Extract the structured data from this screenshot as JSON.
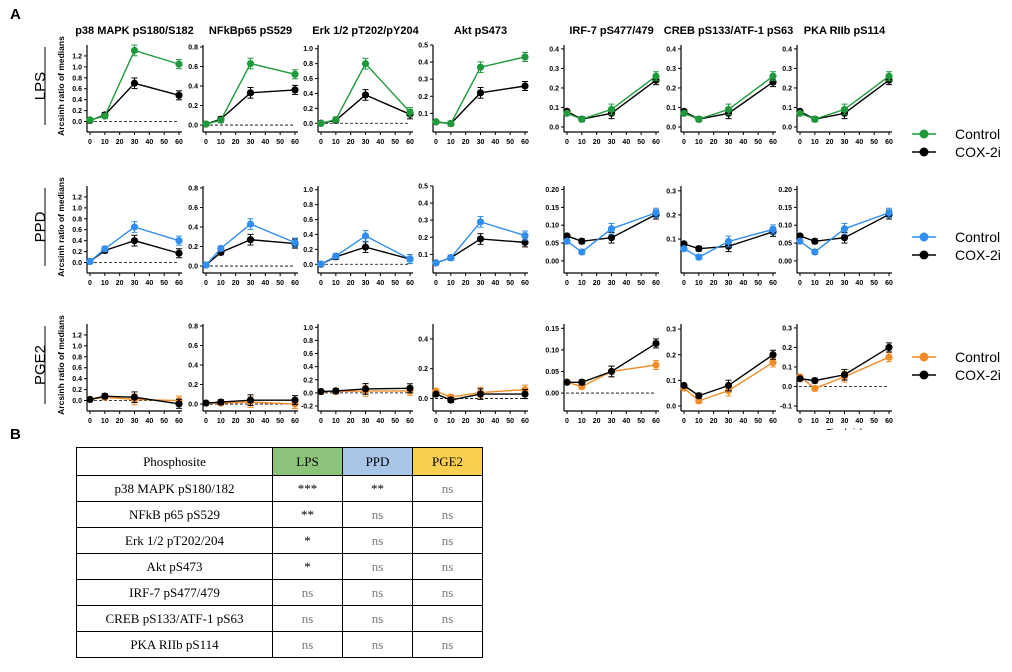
{
  "panel_a_label": "A",
  "panel_b_label": "B",
  "x_axis_label": "Time(min)",
  "y_axis_label": "Arcsinh ratio of medians",
  "legend_items": [
    "Control",
    "COX-2i"
  ],
  "colors": {
    "LPS": "#1e9a3c",
    "PPD": "#2f8ef0",
    "PGE2": "#f28c28",
    "cox2i": "#000000",
    "lps_header": "#8cc37a",
    "ppd_header": "#a9c5e8",
    "pge2_header": "#f8cf4f"
  },
  "chart_data": {
    "type": "line",
    "x": [
      0,
      10,
      30,
      60
    ],
    "x_ticks": [
      0,
      10,
      20,
      30,
      40,
      50,
      60
    ],
    "columns": [
      {
        "title": "p38 MAPK pS180/S182"
      },
      {
        "title": "NFkBp65 pS529"
      },
      {
        "title": "Erk 1/2 pT202/pY204"
      },
      {
        "title": "Akt pS473"
      },
      {
        "title": "IRF-7 pS477/479"
      },
      {
        "title": "CREB pS133/ATF-1 pS63"
      },
      {
        "title": "PKA RIIb pS114"
      }
    ],
    "rows": [
      {
        "label": "LPS",
        "panels": [
          {
            "ylim": [
              -0.1,
              1.4
            ],
            "yticks": [
              "0.0",
              "0.2",
              "0.4",
              "0.6",
              "0.8",
              "1.0",
              "1.2"
            ],
            "zero_line": true,
            "series": [
              {
                "name": "Control",
                "values": [
                  0.03,
                  0.1,
                  1.3,
                  1.05
                ]
              },
              {
                "name": "COX-2i",
                "values": [
                  0.02,
                  0.12,
                  0.7,
                  0.48
                ]
              }
            ]
          },
          {
            "ylim": [
              -0.02,
              0.82
            ],
            "yticks": [
              "0.0",
              "0.2",
              "0.4",
              "0.6",
              "0.8"
            ],
            "zero_line": true,
            "series": [
              {
                "name": "Control",
                "values": [
                  0.01,
                  0.05,
                  0.63,
                  0.52
                ]
              },
              {
                "name": "COX-2i",
                "values": [
                  0.01,
                  0.06,
                  0.33,
                  0.36
                ]
              }
            ]
          },
          {
            "ylim": [
              -0.05,
              1.05
            ],
            "yticks": [
              "0.0",
              "0.2",
              "0.4",
              "0.6",
              "0.8",
              "1.0"
            ],
            "zero_line": true,
            "series": [
              {
                "name": "Control",
                "values": [
                  0.0,
                  0.05,
                  0.8,
                  0.15
                ]
              },
              {
                "name": "COX-2i",
                "values": [
                  0.0,
                  0.04,
                  0.38,
                  0.12
                ]
              }
            ]
          },
          {
            "ylim": [
              0.02,
              0.5
            ],
            "yticks": [
              "0.1",
              "0.2",
              "0.3",
              "0.4",
              "0.5"
            ],
            "zero_line": false,
            "series": [
              {
                "name": "Control",
                "values": [
                  0.05,
                  0.04,
                  0.37,
                  0.43
                ]
              },
              {
                "name": "COX-2i",
                "values": [
                  0.05,
                  0.04,
                  0.22,
                  0.26
                ]
              }
            ]
          },
          {
            "ylim": [
              0.0,
              0.42
            ],
            "yticks": [
              "0.0",
              "0.1",
              "0.2",
              "0.3",
              "0.4"
            ],
            "zero_line": false,
            "series": [
              {
                "name": "Control",
                "values": [
                  0.07,
                  0.04,
                  0.09,
                  0.26
                ]
              },
              {
                "name": "COX-2i",
                "values": [
                  0.08,
                  0.04,
                  0.07,
                  0.24
                ]
              }
            ]
          },
          {
            "ylim": [
              0.0,
              0.42
            ],
            "yticks": [
              "0.0",
              "0.1",
              "0.2",
              "0.3",
              "0.4"
            ],
            "zero_line": false,
            "series": [
              {
                "name": "Control",
                "values": [
                  0.07,
                  0.04,
                  0.09,
                  0.26
                ]
              },
              {
                "name": "COX-2i",
                "values": [
                  0.08,
                  0.04,
                  0.07,
                  0.23
                ]
              }
            ]
          },
          {
            "ylim": [
              0.0,
              0.42
            ],
            "yticks": [
              "0.0",
              "0.1",
              "0.2",
              "0.3",
              "0.4"
            ],
            "zero_line": false,
            "series": [
              {
                "name": "Control",
                "values": [
                  0.07,
                  0.04,
                  0.09,
                  0.26
                ]
              },
              {
                "name": "COX-2i",
                "values": [
                  0.08,
                  0.04,
                  0.07,
                  0.24
                ]
              }
            ]
          }
        ]
      },
      {
        "label": "PPD",
        "panels": [
          {
            "ylim": [
              -0.1,
              1.4
            ],
            "yticks": [
              "0.0",
              "0.2",
              "0.4",
              "0.6",
              "0.8",
              "1.0",
              "1.2"
            ],
            "zero_line": true,
            "series": [
              {
                "name": "Control",
                "values": [
                  0.02,
                  0.25,
                  0.65,
                  0.4
                ]
              },
              {
                "name": "COX-2i",
                "values": [
                  0.02,
                  0.22,
                  0.4,
                  0.17
                ]
              }
            ]
          },
          {
            "ylim": [
              -0.02,
              0.82
            ],
            "yticks": [
              "0.0",
              "0.2",
              "0.4",
              "0.6",
              "0.8"
            ],
            "zero_line": true,
            "series": [
              {
                "name": "Control",
                "values": [
                  0.01,
                  0.18,
                  0.43,
                  0.24
                ]
              },
              {
                "name": "COX-2i",
                "values": [
                  0.01,
                  0.14,
                  0.27,
                  0.23
                ]
              }
            ]
          },
          {
            "ylim": [
              -0.05,
              1.05
            ],
            "yticks": [
              "0.0",
              "0.2",
              "0.4",
              "0.6",
              "0.8",
              "1.0"
            ],
            "zero_line": true,
            "series": [
              {
                "name": "Control",
                "values": [
                  0.0,
                  0.11,
                  0.38,
                  0.07
                ]
              },
              {
                "name": "COX-2i",
                "values": [
                  0.0,
                  0.1,
                  0.23,
                  0.07
                ]
              }
            ]
          },
          {
            "ylim": [
              0.02,
              0.5
            ],
            "yticks": [
              "0.1",
              "0.2",
              "0.3",
              "0.4",
              "0.5"
            ],
            "zero_line": false,
            "series": [
              {
                "name": "Control",
                "values": [
                  0.05,
                  0.08,
                  0.29,
                  0.21
                ]
              },
              {
                "name": "COX-2i",
                "values": [
                  0.05,
                  0.08,
                  0.19,
                  0.17
                ]
              }
            ]
          },
          {
            "ylim": [
              -0.02,
              0.21
            ],
            "yticks": [
              "0.00",
              "0.05",
              "0.10",
              "0.15",
              "0.20"
            ],
            "zero_line": false,
            "series": [
              {
                "name": "Control",
                "values": [
                  0.055,
                  0.025,
                  0.09,
                  0.135
                ]
              },
              {
                "name": "COX-2i",
                "values": [
                  0.07,
                  0.055,
                  0.065,
                  0.13
                ]
              }
            ]
          },
          {
            "ylim": [
              -0.02,
              0.32
            ],
            "yticks": [
              "0.1",
              "0.2",
              "0.3"
            ],
            "zero_line": false,
            "series": [
              {
                "name": "Control",
                "values": [
                  0.06,
                  0.025,
                  0.09,
                  0.14
                ]
              },
              {
                "name": "COX-2i",
                "values": [
                  0.08,
                  0.06,
                  0.07,
                  0.13
                ]
              }
            ]
          },
          {
            "ylim": [
              -0.02,
              0.21
            ],
            "yticks": [
              "0.00",
              "0.05",
              "0.10",
              "0.15",
              "0.20"
            ],
            "zero_line": false,
            "series": [
              {
                "name": "Control",
                "values": [
                  0.055,
                  0.025,
                  0.09,
                  0.135
                ]
              },
              {
                "name": "COX-2i",
                "values": [
                  0.07,
                  0.055,
                  0.065,
                  0.13
                ]
              }
            ]
          }
        ]
      },
      {
        "label": "PGE2",
        "panels": [
          {
            "ylim": [
              -0.1,
              1.4
            ],
            "yticks": [
              "0.0",
              "0.2",
              "0.4",
              "0.6",
              "0.8",
              "1.0",
              "1.2"
            ],
            "zero_line": true,
            "series": [
              {
                "name": "Control",
                "values": [
                  0.02,
                  0.06,
                  0.02,
                  0.0
                ]
              },
              {
                "name": "COX-2i",
                "values": [
                  0.02,
                  0.08,
                  0.06,
                  -0.06
                ]
              }
            ]
          },
          {
            "ylim": [
              -0.02,
              0.82
            ],
            "yticks": [
              "0.0",
              "0.2",
              "0.4",
              "0.6",
              "0.8"
            ],
            "zero_line": true,
            "series": [
              {
                "name": "Control",
                "values": [
                  0.01,
                  0.01,
                  0.02,
                  0.0
                ]
              },
              {
                "name": "COX-2i",
                "values": [
                  0.01,
                  0.02,
                  0.04,
                  0.04
                ]
              }
            ]
          },
          {
            "ylim": [
              -0.2,
              1.05
            ],
            "yticks": [
              "-0.2",
              "0.0",
              "0.2",
              "0.4",
              "0.6",
              "0.8",
              "1.0"
            ],
            "zero_line": true,
            "series": [
              {
                "name": "Control",
                "values": [
                  0.02,
                  0.02,
                  0.03,
                  0.03
                ]
              },
              {
                "name": "COX-2i",
                "values": [
                  0.02,
                  0.03,
                  0.06,
                  0.07
                ]
              }
            ]
          },
          {
            "ylim": [
              -0.05,
              0.5
            ],
            "yticks": [
              "0.0",
              "0.2",
              "0.4"
            ],
            "zero_line": true,
            "series": [
              {
                "name": "Control",
                "values": [
                  0.05,
                  0.01,
                  0.04,
                  0.06
                ]
              },
              {
                "name": "COX-2i",
                "values": [
                  0.03,
                  -0.01,
                  0.03,
                  0.03
                ]
              }
            ]
          },
          {
            "ylim": [
              -0.03,
              0.16
            ],
            "yticks": [
              "0.00",
              "0.05",
              "0.10",
              "0.15"
            ],
            "zero_line": true,
            "series": [
              {
                "name": "Control",
                "values": [
                  0.025,
                  0.015,
                  0.05,
                  0.065
                ]
              },
              {
                "name": "COX-2i",
                "values": [
                  0.025,
                  0.025,
                  0.05,
                  0.115
                ]
              }
            ]
          },
          {
            "ylim": [
              0.0,
              0.32
            ],
            "yticks": [
              "0.0",
              "0.1",
              "0.2",
              "0.3"
            ],
            "zero_line": false,
            "series": [
              {
                "name": "Control",
                "values": [
                  0.07,
                  0.02,
                  0.06,
                  0.17
                ]
              },
              {
                "name": "COX-2i",
                "values": [
                  0.08,
                  0.04,
                  0.08,
                  0.2
                ]
              }
            ]
          },
          {
            "ylim": [
              -0.1,
              0.32
            ],
            "yticks": [
              "-0.1",
              "0.0",
              "0.1",
              "0.2",
              "0.3"
            ],
            "zero_line": true,
            "series": [
              {
                "name": "Control",
                "values": [
                  0.05,
                  -0.01,
                  0.05,
                  0.15
                ]
              },
              {
                "name": "COX-2i",
                "values": [
                  0.04,
                  0.03,
                  0.06,
                  0.2
                ]
              }
            ]
          }
        ]
      }
    ]
  },
  "table": {
    "headers": [
      "Phosphosite",
      "LPS",
      "PPD",
      "PGE2"
    ],
    "rows": [
      {
        "site": "p38 MAPK pS180/182",
        "lps": "***",
        "ppd": "**",
        "pge2": "ns"
      },
      {
        "site": "NFkB p65 pS529",
        "lps": "**",
        "ppd": "ns",
        "pge2": "ns"
      },
      {
        "site": "Erk 1/2 pT202/204",
        "lps": "*",
        "ppd": "ns",
        "pge2": "ns"
      },
      {
        "site": "Akt pS473",
        "lps": "*",
        "ppd": "ns",
        "pge2": "ns"
      },
      {
        "site": "IRF-7 pS477/479",
        "lps": "ns",
        "ppd": "ns",
        "pge2": "ns"
      },
      {
        "site": "CREB pS133/ATF-1 pS63",
        "lps": "ns",
        "ppd": "ns",
        "pge2": "ns"
      },
      {
        "site": "PKA RIIb pS114",
        "lps": "ns",
        "ppd": "ns",
        "pge2": "ns"
      }
    ]
  }
}
